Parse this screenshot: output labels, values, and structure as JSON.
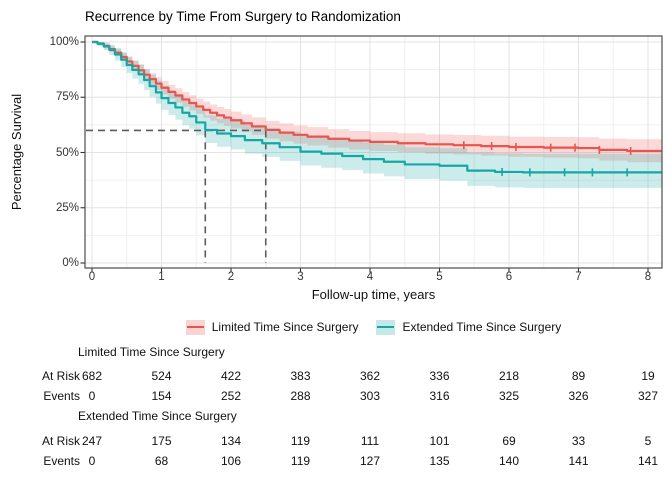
{
  "title": "Recurrence by Time From Surgery to Randomization",
  "chart_data": {
    "type": "line",
    "subtype": "kaplan-meier-step-with-confidence-bands",
    "title": "Recurrence by Time From Surgery to Randomization",
    "xlabel": "Follow-up time, years",
    "ylabel": "Percentage Survival",
    "xlim": [
      -0.1,
      8.3
    ],
    "ylim": [
      0,
      100
    ],
    "x_ticks": [
      0,
      1,
      2,
      3,
      4,
      5,
      6,
      7,
      8
    ],
    "y_ticks": [
      {
        "value": 0,
        "label": "0%"
      },
      {
        "value": 25,
        "label": "25%"
      },
      {
        "value": 50,
        "label": "50%"
      },
      {
        "value": 75,
        "label": "75%"
      },
      {
        "value": 100,
        "label": "100%"
      }
    ],
    "grid": "major and minor, light gray on white, dark panel border",
    "legend_position": "bottom",
    "reference_lines": {
      "note": "dashed guides marking where each curve crosses 60% survival",
      "survival_pct": 60,
      "times": [
        1.63,
        2.5
      ]
    },
    "series": [
      {
        "name": "Limited Time Since Surgery",
        "color": "#E8544E",
        "band_opacity": 0.22,
        "points_t_surv_lo_hi": [
          [
            0,
            100,
            100,
            100
          ],
          [
            0.08,
            99.3,
            98.6,
            100
          ],
          [
            0.17,
            98.2,
            97.2,
            99.2
          ],
          [
            0.25,
            96.8,
            95.5,
            98.1
          ],
          [
            0.33,
            95.2,
            93.6,
            96.8
          ],
          [
            0.42,
            93.2,
            91.4,
            95.1
          ],
          [
            0.5,
            91.2,
            89.1,
            93.3
          ],
          [
            0.58,
            89.2,
            86.9,
            91.5
          ],
          [
            0.67,
            87.2,
            84.8,
            89.7
          ],
          [
            0.75,
            85.2,
            82.6,
            87.8
          ],
          [
            0.83,
            83.2,
            80.5,
            86
          ],
          [
            0.92,
            81.2,
            78.3,
            84.1
          ],
          [
            1,
            79.3,
            76.3,
            82.4
          ],
          [
            1.1,
            77.4,
            74.3,
            80.6
          ],
          [
            1.2,
            75.8,
            72.6,
            79.1
          ],
          [
            1.3,
            74,
            70.7,
            77.4
          ],
          [
            1.4,
            72.4,
            69,
            75.9
          ],
          [
            1.5,
            70.8,
            67.4,
            74.4
          ],
          [
            1.6,
            69.3,
            65.8,
            73
          ],
          [
            1.7,
            68,
            64.4,
            71.7
          ],
          [
            1.8,
            66.8,
            63.2,
            70.6
          ],
          [
            1.9,
            65.8,
            62.1,
            69.6
          ],
          [
            2,
            64.6,
            60.9,
            68.5
          ],
          [
            2.15,
            63.2,
            59.4,
            67.2
          ],
          [
            2.3,
            61.8,
            58,
            65.9
          ],
          [
            2.5,
            60.2,
            56.3,
            64.3
          ],
          [
            2.7,
            59,
            55.1,
            63.2
          ],
          [
            2.9,
            58,
            54,
            62.2
          ],
          [
            3.1,
            57.2,
            53.2,
            61.5
          ],
          [
            3.4,
            56.2,
            52.2,
            60.6
          ],
          [
            3.7,
            55.4,
            51.3,
            59.8
          ],
          [
            4,
            54.8,
            50.7,
            59.2
          ],
          [
            4.4,
            54.2,
            50.1,
            58.7
          ],
          [
            4.8,
            53.7,
            49.5,
            58.2
          ],
          [
            5.2,
            53.3,
            49.1,
            57.9
          ],
          [
            5.6,
            52.9,
            48.6,
            57.6
          ],
          [
            6,
            52.5,
            48.1,
            57.2
          ],
          [
            6.5,
            52.2,
            47.7,
            57
          ],
          [
            7,
            52,
            47.4,
            56.9
          ],
          [
            7.3,
            51.2,
            46.3,
            56.3
          ],
          [
            7.7,
            50.7,
            45.6,
            56
          ],
          [
            8.2,
            50.7,
            45.6,
            56
          ]
        ],
        "censor_times": [
          5.35,
          5.75,
          6.1,
          6.6,
          6.95,
          7.3,
          7.75
        ]
      },
      {
        "name": "Extended Time Since Surgery",
        "color": "#15A7A3",
        "band_opacity": 0.22,
        "points_t_surv_lo_hi": [
          [
            0,
            100,
            100,
            100
          ],
          [
            0.08,
            99.2,
            98.1,
            100
          ],
          [
            0.17,
            98,
            96.3,
            99.7
          ],
          [
            0.25,
            96.4,
            94.1,
            98.8
          ],
          [
            0.33,
            94.4,
            91.6,
            97.3
          ],
          [
            0.42,
            92,
            88.7,
            95.4
          ],
          [
            0.5,
            89.6,
            85.9,
            93.4
          ],
          [
            0.58,
            87.4,
            83.4,
            91.6
          ],
          [
            0.67,
            85.4,
            81.1,
            89.9
          ],
          [
            0.75,
            82.8,
            78.2,
            87.6
          ],
          [
            0.83,
            80,
            75.2,
            85.1
          ],
          [
            0.92,
            77.2,
            72.1,
            82.6
          ],
          [
            1,
            74.6,
            69.3,
            80.2
          ],
          [
            1.1,
            72.4,
            67,
            78.2
          ],
          [
            1.2,
            70.4,
            64.9,
            76.4
          ],
          [
            1.3,
            68,
            62.4,
            74.2
          ],
          [
            1.4,
            66.4,
            60.7,
            72.7
          ],
          [
            1.5,
            63.6,
            57.8,
            70
          ],
          [
            1.63,
            60.2,
            54.3,
            66.8
          ],
          [
            1.8,
            58.6,
            52.6,
            65.3
          ],
          [
            2,
            57.4,
            51.4,
            64.2
          ],
          [
            2.2,
            55.6,
            49.5,
            62.5
          ],
          [
            2.45,
            54.2,
            48,
            61.2
          ],
          [
            2.7,
            52.4,
            46.2,
            59.5
          ],
          [
            3,
            50.4,
            44.1,
            57.7
          ],
          [
            3.3,
            49.5,
            43.1,
            56.8
          ],
          [
            3.6,
            48.4,
            42,
            55.8
          ],
          [
            3.9,
            47,
            40.5,
            54.6
          ],
          [
            4.2,
            45.8,
            39.2,
            53.5
          ],
          [
            4.5,
            44.6,
            38,
            52.4
          ],
          [
            5,
            44,
            37.3,
            51.9
          ],
          [
            5.4,
            41.8,
            34.9,
            50
          ],
          [
            5.8,
            41.2,
            34.2,
            49.6
          ],
          [
            6.2,
            41,
            34,
            49.4
          ],
          [
            8.2,
            41,
            34,
            49.4
          ]
        ],
        "censor_times": [
          5.9,
          6.3,
          6.8,
          7.2,
          7.7
        ]
      }
    ]
  },
  "risk_table": {
    "time_points": [
      0,
      1,
      2,
      3,
      4,
      5,
      6,
      7,
      8
    ],
    "row_labels": {
      "at_risk": "At Risk",
      "events": "Events"
    },
    "groups": [
      {
        "name": "Limited Time Since Surgery",
        "at_risk": [
          682,
          524,
          422,
          383,
          362,
          336,
          218,
          89,
          19
        ],
        "events": [
          0,
          154,
          252,
          288,
          303,
          316,
          325,
          326,
          327
        ]
      },
      {
        "name": "Extended Time Since Surgery",
        "at_risk": [
          247,
          175,
          134,
          119,
          111,
          101,
          69,
          33,
          5
        ],
        "events": [
          0,
          68,
          106,
          119,
          127,
          135,
          140,
          141,
          141
        ]
      }
    ]
  },
  "style": {
    "grid_major": "#E3E3E3",
    "grid_minor": "#F0F0F0",
    "panel_border": "#4D4D4D",
    "dashed_line": "#5C5C5C",
    "tick_mark": "#333333"
  }
}
